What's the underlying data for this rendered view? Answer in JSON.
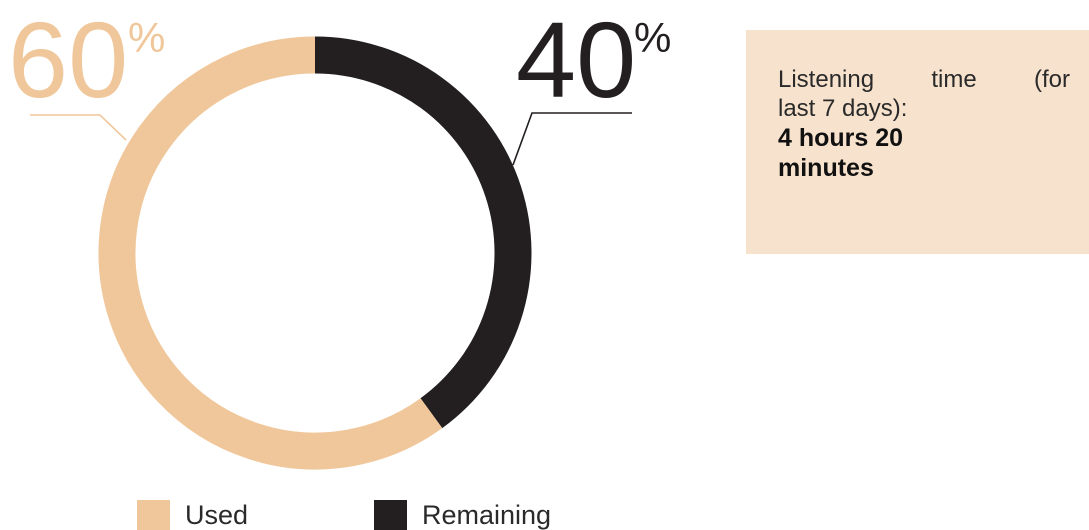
{
  "colors": {
    "used": "#F0C79A",
    "remaining": "#231F20",
    "info_bg": "#F7E2CD",
    "callout_used": "#F0C79A",
    "callout_remaining": "#231F20"
  },
  "chart_data": {
    "type": "pie",
    "subtype": "donut",
    "slices": [
      {
        "name": "Used",
        "value": 60,
        "label": "60",
        "unit": "%"
      },
      {
        "name": "Remaining",
        "value": 40,
        "label": "40",
        "unit": "%"
      }
    ],
    "legend": {
      "placement": "bottom",
      "items": [
        "Used",
        "Remaining"
      ]
    }
  },
  "info": {
    "line1": "Listening time (for",
    "line2": "last 7 days):",
    "value_line1": "4 hours 20",
    "value_line2": "minutes"
  }
}
